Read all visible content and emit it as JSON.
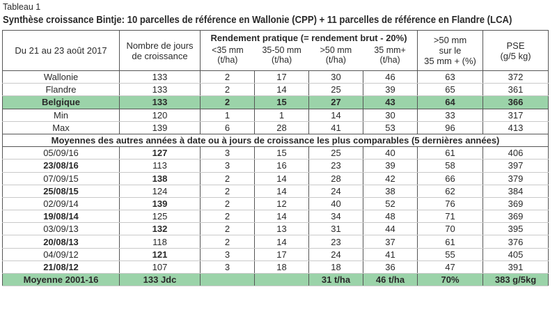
{
  "tag": "Tableau 1",
  "title": "Synthèse croissance Bintje: 10 parcelles de référence en Wallonie (CPP) + 11 parcelles de référence en Flandre (LCA)",
  "header": {
    "date_col": "Du 21 au 23 août 2017",
    "days_col": [
      "Nombre de jours",
      "de croissance"
    ],
    "rend_title": "Rendement pratique (= rendement brut - 20%)",
    "rend_sub": [
      [
        "<35 mm",
        "(t/ha)"
      ],
      [
        "35-50 mm",
        "(t/ha)"
      ],
      [
        ">50 mm",
        "(t/ha)"
      ],
      [
        "35 mm+",
        "(t/ha)"
      ]
    ],
    "pct_col": [
      ">50 mm",
      "sur le",
      "35 mm + (%)"
    ],
    "pse_col": [
      "PSE",
      "(g/5 kg)"
    ]
  },
  "rows_top": [
    [
      "Wallonie",
      "133",
      "2",
      "17",
      "30",
      "46",
      "63",
      "372"
    ],
    [
      "Flandre",
      "133",
      "2",
      "14",
      "25",
      "39",
      "65",
      "361"
    ],
    [
      "Belgique",
      "133",
      "2",
      "15",
      "27",
      "43",
      "64",
      "366"
    ],
    [
      "Min",
      "120",
      "1",
      "1",
      "14",
      "30",
      "33",
      "317"
    ],
    [
      "Max",
      "139",
      "6",
      "28",
      "41",
      "53",
      "96",
      "413"
    ]
  ],
  "section_title": "Moyennes des autres années à date ou à jours de croissance les plus comparables (5 dernières années)",
  "rows_years": [
    [
      "05/09/16",
      "127",
      "3",
      "15",
      "25",
      "40",
      "61",
      "406"
    ],
    [
      "23/08/16",
      "113",
      "3",
      "16",
      "23",
      "39",
      "58",
      "397"
    ],
    [
      "07/09/15",
      "138",
      "2",
      "14",
      "28",
      "42",
      "66",
      "379"
    ],
    [
      "25/08/15",
      "124",
      "2",
      "14",
      "24",
      "38",
      "62",
      "384"
    ],
    [
      "02/09/14",
      "139",
      "2",
      "12",
      "40",
      "52",
      "76",
      "369"
    ],
    [
      "19/08/14",
      "125",
      "2",
      "14",
      "34",
      "48",
      "71",
      "369"
    ],
    [
      "03/09/13",
      "132",
      "2",
      "13",
      "31",
      "44",
      "70",
      "395"
    ],
    [
      "20/08/13",
      "118",
      "2",
      "14",
      "23",
      "37",
      "61",
      "376"
    ],
    [
      "04/09/12",
      "121",
      "3",
      "17",
      "24",
      "41",
      "55",
      "405"
    ],
    [
      "21/08/12",
      "107",
      "3",
      "18",
      "18",
      "36",
      "47",
      "391"
    ]
  ],
  "avg_row": [
    "Moyenne 2001-16",
    "133 Jdc",
    "",
    "",
    "31 t/ha",
    "46 t/ha",
    "70%",
    "383 g/5kg"
  ]
}
